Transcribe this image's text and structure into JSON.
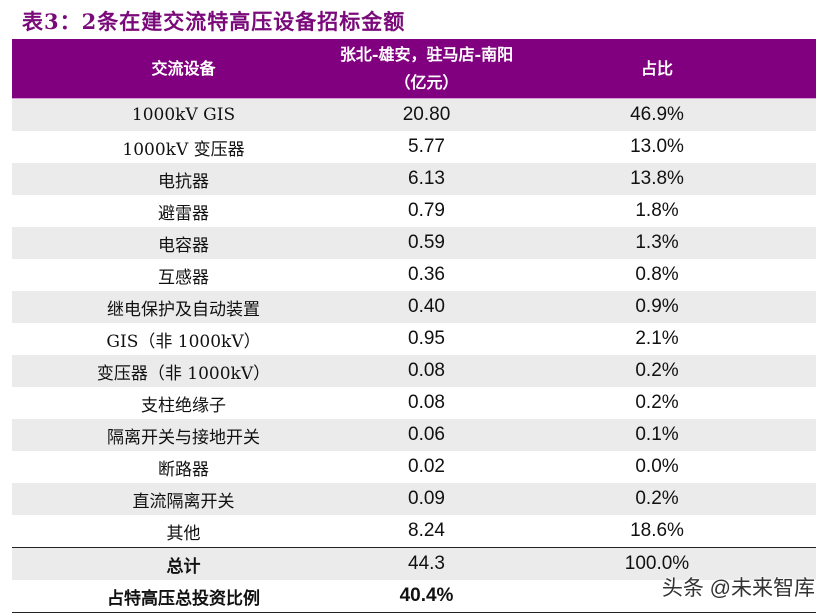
{
  "title": "表3：2条在建交流特高压设备招标金额",
  "table": {
    "headers": {
      "equipment": "交流设备",
      "amount_line1": "张北-雄安，驻马店-南阳",
      "amount_line2": "（亿元）",
      "share": "占比"
    },
    "rows": [
      {
        "equipment": "1000kV GIS",
        "amount": "20.80",
        "share": "46.9%"
      },
      {
        "equipment": "1000kV 变压器",
        "amount": "5.77",
        "share": "13.0%"
      },
      {
        "equipment": "电抗器",
        "amount": "6.13",
        "share": "13.8%"
      },
      {
        "equipment": "避雷器",
        "amount": "0.79",
        "share": "1.8%"
      },
      {
        "equipment": "电容器",
        "amount": "0.59",
        "share": "1.3%"
      },
      {
        "equipment": "互感器",
        "amount": "0.36",
        "share": "0.8%"
      },
      {
        "equipment": "继电保护及自动装置",
        "amount": "0.40",
        "share": "0.9%"
      },
      {
        "equipment": "GIS（非 1000kV）",
        "amount": "0.95",
        "share": "2.1%"
      },
      {
        "equipment": "变压器（非 1000kV）",
        "amount": "0.08",
        "share": "0.2%"
      },
      {
        "equipment": "支柱绝缘子",
        "amount": "0.08",
        "share": "0.2%"
      },
      {
        "equipment": "隔离开关与接地开关",
        "amount": "0.06",
        "share": "0.1%"
      },
      {
        "equipment": "断路器",
        "amount": "0.02",
        "share": "0.0%"
      },
      {
        "equipment": "直流隔离开关",
        "amount": "0.09",
        "share": "0.2%"
      },
      {
        "equipment": "其他",
        "amount": "8.24",
        "share": "18.6%"
      }
    ],
    "total": {
      "label": "总计",
      "amount": "44.3",
      "share": "100.0%"
    },
    "ratio": {
      "label": "占特高压总投资比例",
      "value": "40.4%"
    }
  },
  "watermark": "头条 @未来智库",
  "colors": {
    "header_bg": "#800080",
    "title": "#7a0a7a",
    "alt_row": "#ebebeb"
  }
}
